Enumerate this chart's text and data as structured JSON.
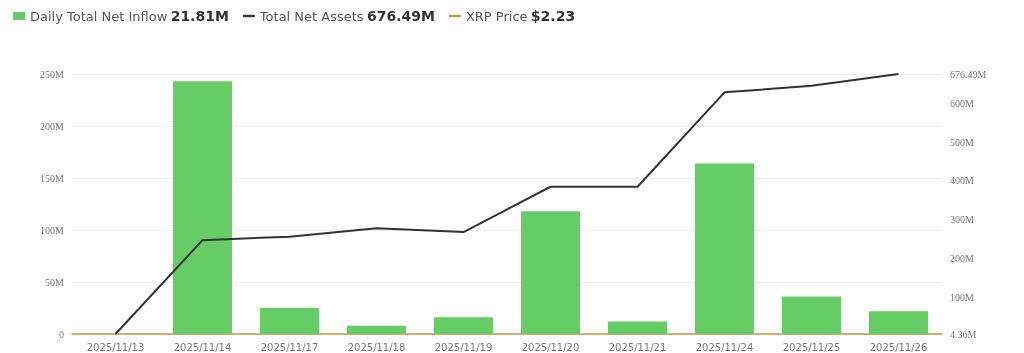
{
  "chart_data": {
    "type": "bar",
    "categories": [
      "2025/11/13",
      "2025/11/14",
      "2025/11/17",
      "2025/11/18",
      "2025/11/19",
      "2025/11/20",
      "2025/11/21",
      "2025/11/24",
      "2025/11/25",
      "2025/11/26"
    ],
    "series": [
      {
        "name": "Daily Total Net Inflow",
        "color": "#66cc66",
        "values": [
          0,
          243,
          25,
          8,
          16,
          118,
          12,
          164,
          36,
          21.81
        ]
      },
      {
        "name": "Total Net Assets",
        "type": "line",
        "axis": "y2",
        "color": "#333333",
        "values": [
          4.36,
          247,
          256,
          278,
          268,
          385,
          385,
          629,
          646,
          676.49
        ]
      },
      {
        "name": "XRP Price",
        "type": "line",
        "color": "#c8963c",
        "values": [
          null,
          null,
          null,
          null,
          null,
          null,
          null,
          null,
          null,
          null
        ]
      }
    ],
    "annotations": [
      "21.81M",
      "676.49M",
      "$2.23"
    ],
    "ylim": [
      0,
      250
    ],
    "yticks": [
      0,
      {
        "value": 50,
        "label": "50M"
      },
      {
        "value": 100,
        "label": "100M"
      },
      {
        "value": 150,
        "label": "150M"
      },
      {
        "value": 200,
        "label": "200M"
      },
      {
        "value": 250,
        "label": "250M"
      }
    ],
    "y2lim": [
      4.36,
      676.49
    ],
    "y2ticks": [
      {
        "value": 4.36,
        "label": "4.36M"
      },
      {
        "value": 100,
        "label": "100M"
      },
      {
        "value": 200,
        "label": "200M"
      },
      {
        "value": 300,
        "label": "300M"
      },
      {
        "value": 400,
        "label": "400M"
      },
      {
        "value": 500,
        "label": "500M"
      },
      {
        "value": 600,
        "label": "600M"
      },
      {
        "value": 676.49,
        "label": "676.49M"
      }
    ],
    "grid": "y",
    "legend": "top left",
    "marker": "none",
    "line_style": "solid"
  }
}
